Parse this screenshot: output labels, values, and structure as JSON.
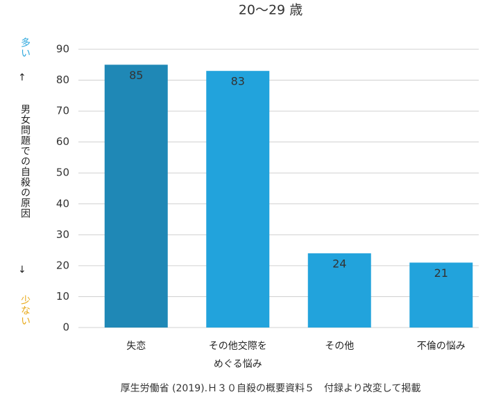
{
  "chart_data": {
    "type": "bar",
    "title": "20～29 歳",
    "y_axis": {
      "high": "多い",
      "up_arrow": "↑",
      "label": "男女問題での自殺の原因",
      "down_arrow": "↓",
      "low": "少ない"
    },
    "categories": [
      "失恋",
      "その他交際を\nめぐる悩み",
      "その他",
      "不倫の悩み"
    ],
    "values": [
      85,
      83,
      24,
      21
    ],
    "colors": [
      "#1f88b6",
      "#22a3dc",
      "#22a3dc",
      "#22a3dc"
    ],
    "ylim": [
      0,
      90
    ],
    "yticks": [
      0,
      10,
      20,
      30,
      40,
      50,
      60,
      70,
      80,
      90
    ],
    "grid": true,
    "source": "厚生労働省 (2019).Ｈ３０自殺の概要資料５　付録より改変して掲載"
  }
}
